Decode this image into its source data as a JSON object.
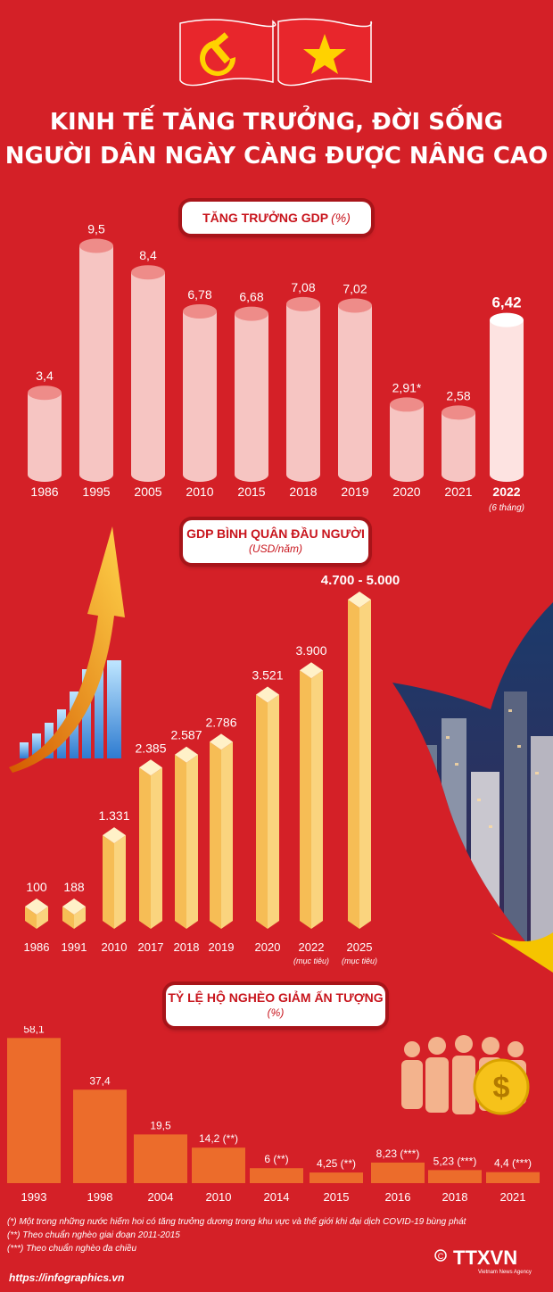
{
  "title": {
    "line1": "KINH TẾ TĂNG TRƯỞNG, ĐỜI SỐNG",
    "line2": "NGƯỜI DÂN NGÀY CÀNG ĐƯỢC NÂNG CAO"
  },
  "sections": {
    "gdp": {
      "title": "TĂNG TRƯỞNG GDP",
      "unit": "(%)"
    },
    "gdppc": {
      "title": "GDP BÌNH QUÂN ĐẦU NGƯỜI",
      "unit": "(USD/năm)"
    },
    "poverty": {
      "title": "TỶ LỆ HỘ NGHÈO GIẢM ẤN TƯỢNG",
      "unit": "(%)"
    }
  },
  "colors": {
    "background": "#d42027",
    "gdp_bar": "#f6c5c2",
    "gdp_bar_highlight": "#fde3e1",
    "gdppc_bar": "#fad47e",
    "poverty_bar": "#ec6c2b"
  },
  "chart_data": [
    {
      "type": "bar",
      "title": "TĂNG TRƯỞNG GDP (%)",
      "categories": [
        "1986",
        "1995",
        "2005",
        "2010",
        "2015",
        "2018",
        "2019",
        "2020",
        "2021",
        "2022"
      ],
      "category_notes": [
        "",
        "",
        "",
        "",
        "",
        "",
        "",
        "",
        "",
        "(6 tháng)"
      ],
      "values": [
        3.4,
        9.5,
        8.4,
        6.78,
        6.68,
        7.08,
        7.02,
        2.91,
        2.58,
        6.42
      ],
      "value_labels": [
        "3,4",
        "9,5",
        "8,4",
        "6,78",
        "6,68",
        "7,08",
        "7,02",
        "2,91*",
        "2,58",
        "6,42"
      ],
      "highlight_index": 9,
      "ylim": [
        0,
        10
      ],
      "grid": false
    },
    {
      "type": "bar",
      "title": "GDP BÌNH QUÂN ĐẦU NGƯỜI (USD/năm)",
      "categories": [
        "1986",
        "1991",
        "2010",
        "2017",
        "2018",
        "2019",
        "2020",
        "2022",
        "2025"
      ],
      "category_notes": [
        "",
        "",
        "",
        "",
        "",
        "",
        "",
        "(mục tiêu)",
        "(mục tiêu)"
      ],
      "values": [
        100,
        188,
        1331,
        2385,
        2587,
        2786,
        3521,
        3900,
        5000
      ],
      "value_labels": [
        "100",
        "188",
        "1.331",
        "2.385",
        "2.587",
        "2.786",
        "3.521",
        "3.900",
        "4.700 - 5.000"
      ],
      "ylim": [
        0,
        5000
      ],
      "grid": false
    },
    {
      "type": "bar",
      "title": "TỶ LỆ HỘ NGHÈO GIẢM ẤN TƯỢNG (%)",
      "categories": [
        "1993",
        "1998",
        "2004",
        "2010",
        "2014",
        "2015",
        "2016",
        "2018",
        "2021"
      ],
      "values": [
        58.1,
        37.4,
        19.5,
        14.2,
        6,
        4.25,
        8.23,
        5.23,
        4.4
      ],
      "value_labels": [
        "58,1",
        "37,4",
        "19,5",
        "14,2 (**)",
        "6 (**)",
        "4,25 (**)",
        "8,23 (***)",
        "5,23 (***)",
        "4,4 (***)"
      ],
      "ylim": [
        0,
        60
      ],
      "grid": false
    }
  ],
  "footnotes": [
    "(*) Một trong những nước hiếm hoi có tăng trưởng dương trong khu vực và thế giới khi đại dịch COVID-19 bùng phát",
    "(**) Theo chuẩn nghèo giai đoạn 2011-2015",
    "(***) Theo chuẩn nghèo đa chiều"
  ],
  "footer": {
    "url": "https://infographics.vn",
    "logo_text": "TTXVN",
    "logo_sub": "Vietnam News Agency"
  },
  "icons": {
    "dollar": "$"
  }
}
